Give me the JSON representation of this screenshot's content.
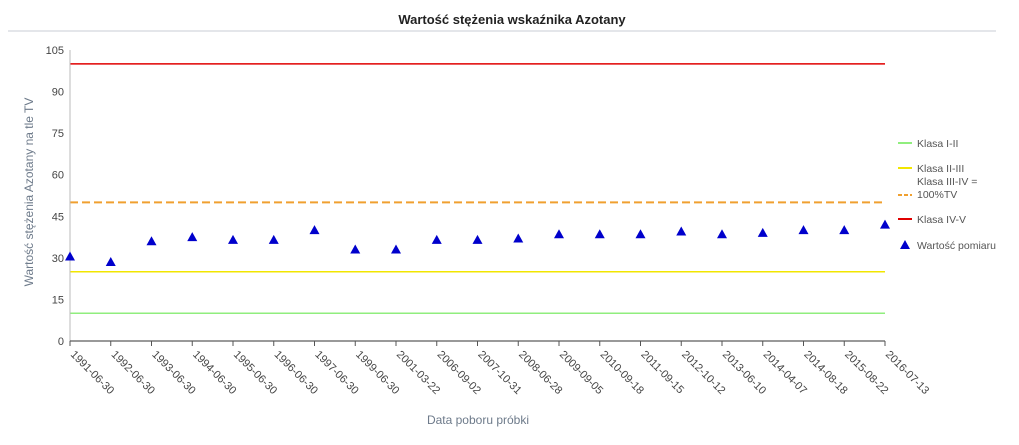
{
  "chart_data": {
    "type": "scatter",
    "title": "Wartość stężenia wskaźnika Azotany",
    "xlabel": "Data poboru próbki",
    "ylabel": "Wartość stężenia Azotany  na tle TV",
    "ylim": [
      0,
      105
    ],
    "yticks": [
      "0",
      "15",
      "30",
      "45",
      "60",
      "75",
      "90",
      "105"
    ],
    "categories": [
      "1991-06-30",
      "1992-06-30",
      "1993-06-30",
      "1994-06-30",
      "1995-06-30",
      "1996-06-30",
      "1997-06-30",
      "1999-06-30",
      "2001-03-22",
      "2006-09-02",
      "2007-10-31",
      "2008-06-28",
      "2009-09-05",
      "2010-09-18",
      "2011-09-15",
      "2012-10-12",
      "2013-06-10",
      "2014-04-07",
      "2014-08-18",
      "2015-08-22",
      "2016-07-13"
    ],
    "grid": false,
    "legend_position": "right",
    "reference_lines": [
      {
        "name": "Klasa I-II",
        "value": 10,
        "color": "#90ee7e",
        "style": "solid"
      },
      {
        "name": "Klasa II-III",
        "value": 25,
        "color": "#f2e600",
        "style": "solid"
      },
      {
        "name": "Klasa III-IV = 100%TV",
        "value": 50,
        "color": "#f0a030",
        "style": "dashed"
      },
      {
        "name": "Klasa IV-V",
        "value": 100,
        "color": "#e00000",
        "style": "solid"
      }
    ],
    "series": [
      {
        "name": "Wartość pomiaru",
        "marker": "triangle",
        "color": "#0000cc",
        "values": [
          30.5,
          28.5,
          36,
          37.5,
          36.5,
          36.5,
          40,
          33,
          33,
          36.5,
          36.5,
          37,
          38.5,
          38.5,
          38.5,
          39.5,
          38.5,
          39,
          40,
          40,
          42
        ]
      }
    ]
  },
  "legend": {
    "items": [
      {
        "lines": [
          "Klasa I-II"
        ]
      },
      {
        "lines": [
          "Klasa II-III"
        ]
      },
      {
        "lines": [
          "Klasa III-IV =",
          "100%TV"
        ]
      },
      {
        "lines": [
          "Klasa IV-V"
        ]
      },
      {
        "lines": [
          "Wartość pomiaru"
        ]
      }
    ]
  }
}
